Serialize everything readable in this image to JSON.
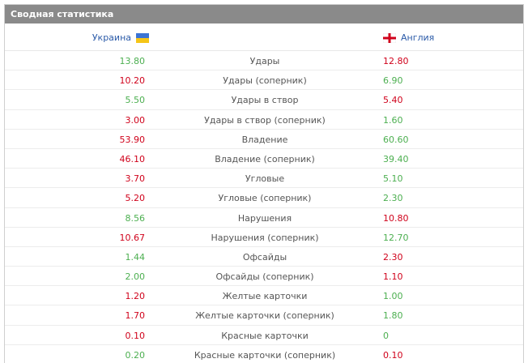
{
  "panel": {
    "title": "Сводная статистика"
  },
  "teams": {
    "home": "Украина",
    "away": "Англия"
  },
  "colors": {
    "better": "#4caf50",
    "worse": "#d0021b",
    "header_bg": "#8a8a8a",
    "team_link": "#2a5aa8"
  },
  "rows": [
    {
      "label": "Удары",
      "home": "13.80",
      "away": "12.80",
      "home_color": "green",
      "away_color": "red"
    },
    {
      "label": "Удары (соперник)",
      "home": "10.20",
      "away": "6.90",
      "home_color": "red",
      "away_color": "green"
    },
    {
      "label": "Удары в створ",
      "home": "5.50",
      "away": "5.40",
      "home_color": "green",
      "away_color": "red"
    },
    {
      "label": "Удары в створ (соперник)",
      "home": "3.00",
      "away": "1.60",
      "home_color": "red",
      "away_color": "green"
    },
    {
      "label": "Владение",
      "home": "53.90",
      "away": "60.60",
      "home_color": "red",
      "away_color": "green"
    },
    {
      "label": "Владение (соперник)",
      "home": "46.10",
      "away": "39.40",
      "home_color": "red",
      "away_color": "green"
    },
    {
      "label": "Угловые",
      "home": "3.70",
      "away": "5.10",
      "home_color": "red",
      "away_color": "green"
    },
    {
      "label": "Угловые (соперник)",
      "home": "5.20",
      "away": "2.30",
      "home_color": "red",
      "away_color": "green"
    },
    {
      "label": "Нарушения",
      "home": "8.56",
      "away": "10.80",
      "home_color": "green",
      "away_color": "red"
    },
    {
      "label": "Нарушения (соперник)",
      "home": "10.67",
      "away": "12.70",
      "home_color": "red",
      "away_color": "green"
    },
    {
      "label": "Офсайды",
      "home": "1.44",
      "away": "2.30",
      "home_color": "green",
      "away_color": "red"
    },
    {
      "label": "Офсайды (соперник)",
      "home": "2.00",
      "away": "1.10",
      "home_color": "green",
      "away_color": "red"
    },
    {
      "label": "Желтые карточки",
      "home": "1.20",
      "away": "1.00",
      "home_color": "red",
      "away_color": "green"
    },
    {
      "label": "Желтые карточки (соперник)",
      "home": "1.70",
      "away": "1.80",
      "home_color": "red",
      "away_color": "green"
    },
    {
      "label": "Красные карточки",
      "home": "0.10",
      "away": "0",
      "home_color": "red",
      "away_color": "green"
    },
    {
      "label": "Красные карточки (соперник)",
      "home": "0.20",
      "away": "0.10",
      "home_color": "green",
      "away_color": "red"
    }
  ]
}
